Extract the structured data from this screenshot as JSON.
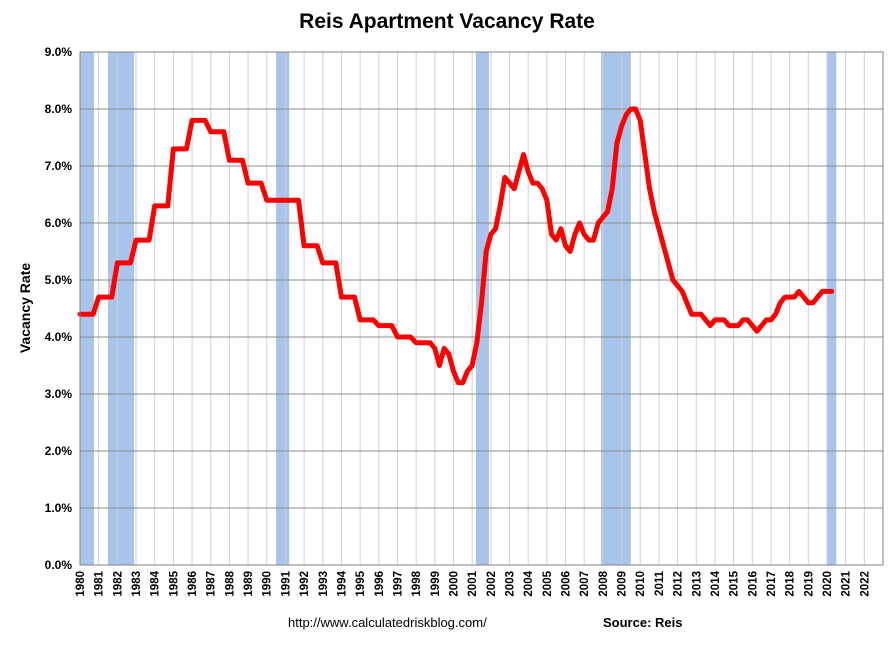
{
  "chart_data": {
    "type": "line",
    "title": "Reis Apartment Vacancy Rate",
    "ylabel": "Vacancy Rate",
    "xlabel": "",
    "ylim": [
      0,
      9
    ],
    "xlim": [
      1980,
      2023
    ],
    "y_ticks": [
      "0.0%",
      "1.0%",
      "2.0%",
      "3.0%",
      "4.0%",
      "5.0%",
      "6.0%",
      "7.0%",
      "8.0%",
      "9.0%"
    ],
    "x_ticks": [
      "1980",
      "1981",
      "1982",
      "1983",
      "1984",
      "1985",
      "1986",
      "1987",
      "1988",
      "1989",
      "1990",
      "1991",
      "1992",
      "1993",
      "1994",
      "1995",
      "1996",
      "1997",
      "1998",
      "1999",
      "2000",
      "2001",
      "2002",
      "2003",
      "2004",
      "2005",
      "2006",
      "2007",
      "2008",
      "2009",
      "2010",
      "2011",
      "2012",
      "2013",
      "2014",
      "2015",
      "2016",
      "2017",
      "2018",
      "2019",
      "2020",
      "2021",
      "2022"
    ],
    "grid": true,
    "recessions": [
      {
        "start": 1980.0,
        "end": 1980.75
      },
      {
        "start": 1981.5,
        "end": 1982.9
      },
      {
        "start": 1990.5,
        "end": 1991.2
      },
      {
        "start": 2001.2,
        "end": 2001.9
      },
      {
        "start": 2007.9,
        "end": 2009.5
      },
      {
        "start": 2020.0,
        "end": 2020.5
      }
    ],
    "series": [
      {
        "color": "#ff0000",
        "points": [
          [
            1980.0,
            4.4
          ],
          [
            1980.7,
            4.4
          ],
          [
            1981.0,
            4.7
          ],
          [
            1981.7,
            4.7
          ],
          [
            1982.0,
            5.3
          ],
          [
            1982.7,
            5.3
          ],
          [
            1983.0,
            5.7
          ],
          [
            1983.7,
            5.7
          ],
          [
            1984.0,
            6.3
          ],
          [
            1984.7,
            6.3
          ],
          [
            1985.0,
            7.3
          ],
          [
            1985.7,
            7.3
          ],
          [
            1986.0,
            7.8
          ],
          [
            1986.7,
            7.8
          ],
          [
            1987.0,
            7.6
          ],
          [
            1987.7,
            7.6
          ],
          [
            1988.0,
            7.1
          ],
          [
            1988.7,
            7.1
          ],
          [
            1989.0,
            6.7
          ],
          [
            1989.7,
            6.7
          ],
          [
            1990.0,
            6.4
          ],
          [
            1990.7,
            6.4
          ],
          [
            1991.0,
            6.4
          ],
          [
            1991.7,
            6.4
          ],
          [
            1992.0,
            5.6
          ],
          [
            1992.7,
            5.6
          ],
          [
            1993.0,
            5.3
          ],
          [
            1993.7,
            5.3
          ],
          [
            1994.0,
            4.7
          ],
          [
            1994.7,
            4.7
          ],
          [
            1995.0,
            4.3
          ],
          [
            1995.7,
            4.3
          ],
          [
            1996.0,
            4.2
          ],
          [
            1996.7,
            4.2
          ],
          [
            1997.0,
            4.0
          ],
          [
            1997.7,
            4.0
          ],
          [
            1998.0,
            3.9
          ],
          [
            1998.75,
            3.9
          ],
          [
            1999.0,
            3.8
          ],
          [
            1999.25,
            3.5
          ],
          [
            1999.5,
            3.8
          ],
          [
            1999.75,
            3.7
          ],
          [
            2000.0,
            3.4
          ],
          [
            2000.25,
            3.2
          ],
          [
            2000.5,
            3.2
          ],
          [
            2000.75,
            3.4
          ],
          [
            2001.0,
            3.5
          ],
          [
            2001.25,
            3.9
          ],
          [
            2001.5,
            4.6
          ],
          [
            2001.75,
            5.5
          ],
          [
            2002.0,
            5.8
          ],
          [
            2002.25,
            5.9
          ],
          [
            2002.5,
            6.3
          ],
          [
            2002.75,
            6.8
          ],
          [
            2003.0,
            6.7
          ],
          [
            2003.25,
            6.6
          ],
          [
            2003.5,
            6.9
          ],
          [
            2003.75,
            7.2
          ],
          [
            2004.0,
            6.9
          ],
          [
            2004.25,
            6.7
          ],
          [
            2004.5,
            6.7
          ],
          [
            2004.75,
            6.6
          ],
          [
            2005.0,
            6.4
          ],
          [
            2005.25,
            5.8
          ],
          [
            2005.5,
            5.7
          ],
          [
            2005.75,
            5.9
          ],
          [
            2006.0,
            5.6
          ],
          [
            2006.25,
            5.5
          ],
          [
            2006.5,
            5.8
          ],
          [
            2006.75,
            6.0
          ],
          [
            2007.0,
            5.8
          ],
          [
            2007.25,
            5.7
          ],
          [
            2007.5,
            5.7
          ],
          [
            2007.75,
            6.0
          ],
          [
            2008.0,
            6.1
          ],
          [
            2008.25,
            6.2
          ],
          [
            2008.5,
            6.6
          ],
          [
            2008.75,
            7.4
          ],
          [
            2009.0,
            7.7
          ],
          [
            2009.25,
            7.9
          ],
          [
            2009.5,
            8.0
          ],
          [
            2009.75,
            8.0
          ],
          [
            2010.0,
            7.8
          ],
          [
            2010.25,
            7.2
          ],
          [
            2010.5,
            6.6
          ],
          [
            2010.75,
            6.2
          ],
          [
            2011.0,
            5.9
          ],
          [
            2011.25,
            5.6
          ],
          [
            2011.5,
            5.3
          ],
          [
            2011.75,
            5.0
          ],
          [
            2012.0,
            4.9
          ],
          [
            2012.25,
            4.8
          ],
          [
            2012.5,
            4.6
          ],
          [
            2012.75,
            4.4
          ],
          [
            2013.0,
            4.4
          ],
          [
            2013.25,
            4.4
          ],
          [
            2013.5,
            4.3
          ],
          [
            2013.75,
            4.2
          ],
          [
            2014.0,
            4.3
          ],
          [
            2014.25,
            4.3
          ],
          [
            2014.5,
            4.3
          ],
          [
            2014.75,
            4.2
          ],
          [
            2015.0,
            4.2
          ],
          [
            2015.25,
            4.2
          ],
          [
            2015.5,
            4.3
          ],
          [
            2015.75,
            4.3
          ],
          [
            2016.0,
            4.2
          ],
          [
            2016.25,
            4.1
          ],
          [
            2016.5,
            4.2
          ],
          [
            2016.75,
            4.3
          ],
          [
            2017.0,
            4.3
          ],
          [
            2017.25,
            4.4
          ],
          [
            2017.5,
            4.6
          ],
          [
            2017.75,
            4.7
          ],
          [
            2018.0,
            4.7
          ],
          [
            2018.25,
            4.7
          ],
          [
            2018.5,
            4.8
          ],
          [
            2018.75,
            4.7
          ],
          [
            2019.0,
            4.6
          ],
          [
            2019.25,
            4.6
          ],
          [
            2019.5,
            4.7
          ],
          [
            2019.75,
            4.8
          ],
          [
            2020.0,
            4.8
          ],
          [
            2020.25,
            4.8
          ]
        ]
      }
    ],
    "recession_color": "#a8c4ea"
  },
  "footer": {
    "url": "http://www.calculatedriskblog.com/",
    "source": "Source: Reis"
  }
}
